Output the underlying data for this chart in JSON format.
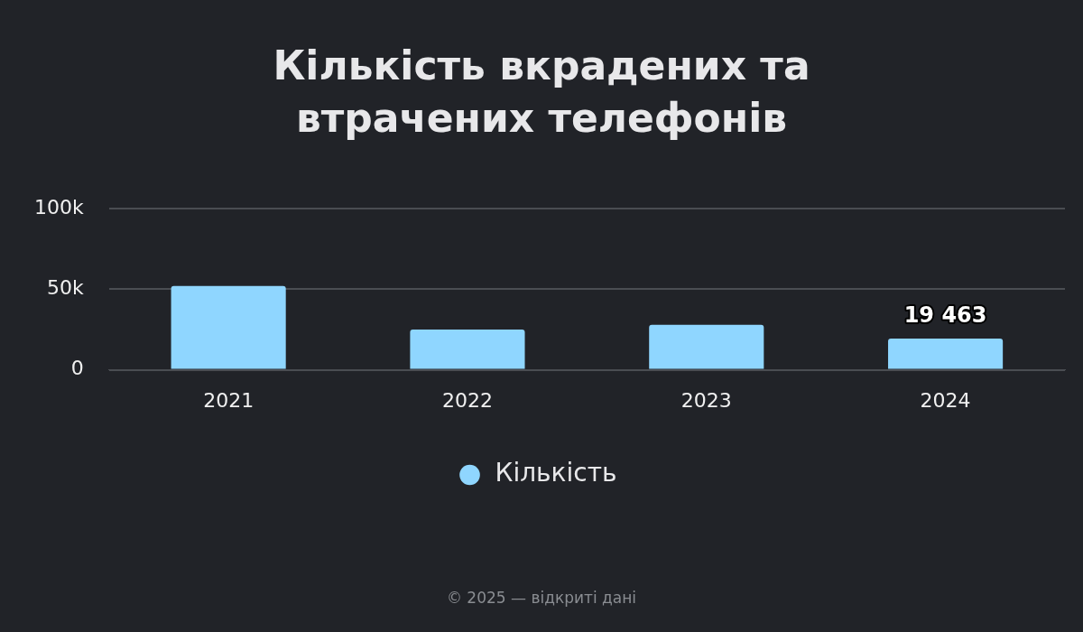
{
  "chart_data": {
    "type": "bar",
    "title": "Кількість вкрадених та втрачених телефонів",
    "categories": [
      "2021",
      "2022",
      "2023",
      "2024"
    ],
    "series": [
      {
        "name": "Кількість",
        "color": "#8fd6ff",
        "values": [
          52000,
          25000,
          28000,
          19463
        ],
        "value_labels": [
          null,
          null,
          null,
          "19 463"
        ]
      }
    ],
    "ylim": [
      0,
      100000
    ],
    "yticks": [
      {
        "value": 0,
        "label": "0"
      },
      {
        "value": 50000,
        "label": "50k"
      },
      {
        "value": 100000,
        "label": "100k"
      }
    ],
    "grid": "y",
    "legend": "bottom",
    "annotations": [
      "© 2025 — відкриті дані"
    ]
  }
}
